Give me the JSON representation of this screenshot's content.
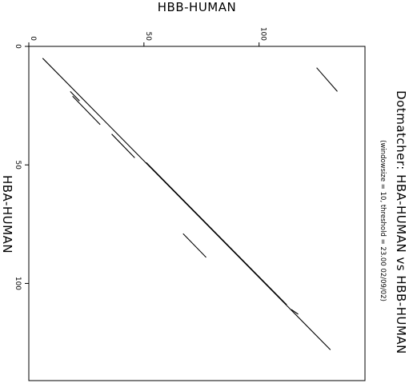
{
  "chart_data": {
    "type": "dotplot",
    "title": "Dotmatcher: HBA-HUMAN vs HBB-HUMAN",
    "subtitle": "(windowsize = 10, threshold = 23.00  02/09/02)",
    "xlabel": "HBB-HUMAN",
    "ylabel": "HBA-HUMAN",
    "xlim": [
      0,
      146
    ],
    "ylim": [
      0,
      141
    ],
    "x_ticks": [
      0,
      50,
      100
    ],
    "y_ticks": [
      0,
      50,
      100
    ],
    "grid": false,
    "segments": [
      {
        "x0": 6,
        "y0": 5,
        "x1": 131,
        "y1": 128
      },
      {
        "x0": 18,
        "y0": 19,
        "x1": 22,
        "y1": 23
      },
      {
        "x0": 19,
        "y0": 21,
        "x1": 31,
        "y1": 33
      },
      {
        "x0": 36,
        "y0": 37,
        "x1": 46,
        "y1": 47
      },
      {
        "x0": 51,
        "y0": 49,
        "x1": 112,
        "y1": 109
      },
      {
        "x0": 114,
        "y0": 111,
        "x1": 117,
        "y1": 113
      },
      {
        "x0": 67,
        "y0": 79,
        "x1": 77,
        "y1": 89
      },
      {
        "x0": 125,
        "y0": 9,
        "x1": 134,
        "y1": 19
      }
    ]
  }
}
